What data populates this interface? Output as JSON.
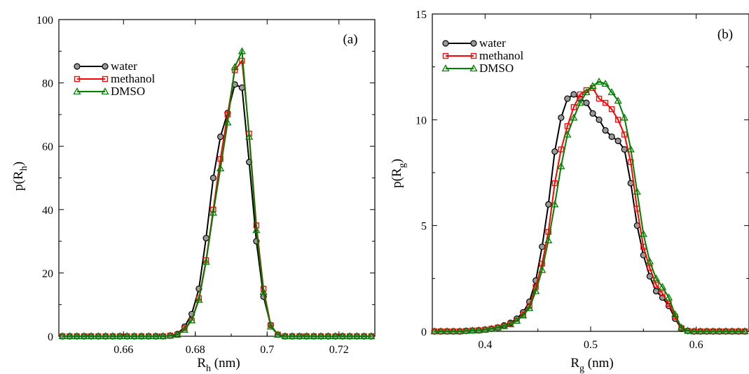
{
  "colors": {
    "water": "#000000",
    "methanol": "#ff0000",
    "dmso": "#008000",
    "water_marker_fill": "#9a9a9a"
  },
  "chart_data": [
    {
      "type": "line",
      "panel_label": "(a)",
      "xlabel_main": "R",
      "xlabel_sub": "h",
      "xlabel_unit": " (nm)",
      "ylabel_main": "p(R",
      "ylabel_sub": "h",
      "ylabel_close": ")",
      "xlim": [
        0.642,
        0.73
      ],
      "ylim": [
        0,
        100
      ],
      "xticks": [
        0.66,
        0.68,
        0.7,
        0.72
      ],
      "xtick_labels": [
        "0.66",
        "0.68",
        "0.7",
        "0.72"
      ],
      "yticks": [
        0,
        20,
        40,
        60,
        80,
        100
      ],
      "ytick_labels": [
        "0",
        "20",
        "40",
        "60",
        "80",
        "100"
      ],
      "legend_position": "top-left",
      "series": [
        {
          "name": "water",
          "marker": "circle",
          "x": [
            0.643,
            0.645,
            0.647,
            0.649,
            0.651,
            0.653,
            0.655,
            0.657,
            0.659,
            0.661,
            0.663,
            0.665,
            0.667,
            0.669,
            0.671,
            0.673,
            0.675,
            0.677,
            0.679,
            0.681,
            0.683,
            0.685,
            0.687,
            0.689,
            0.691,
            0.693,
            0.695,
            0.697,
            0.699,
            0.701,
            0.703,
            0.705,
            0.707,
            0.709,
            0.711,
            0.713,
            0.715,
            0.717,
            0.719,
            0.721,
            0.723,
            0.725,
            0.727,
            0.729
          ],
          "y": [
            0,
            0,
            0,
            0,
            0,
            0,
            0,
            0,
            0,
            0,
            0,
            0,
            0,
            0,
            0,
            0.2,
            0.7,
            3,
            7,
            15,
            31,
            50,
            63,
            70.5,
            79.5,
            78.5,
            55,
            30,
            12.5,
            3.5,
            0.5,
            0,
            0,
            0,
            0,
            0,
            0,
            0,
            0,
            0,
            0,
            0,
            0,
            0
          ]
        },
        {
          "name": "methanol",
          "marker": "square",
          "x": [
            0.643,
            0.645,
            0.647,
            0.649,
            0.651,
            0.653,
            0.655,
            0.657,
            0.659,
            0.661,
            0.663,
            0.665,
            0.667,
            0.669,
            0.671,
            0.673,
            0.675,
            0.677,
            0.679,
            0.681,
            0.683,
            0.685,
            0.687,
            0.689,
            0.691,
            0.693,
            0.695,
            0.697,
            0.699,
            0.701,
            0.703,
            0.705,
            0.707,
            0.709,
            0.711,
            0.713,
            0.715,
            0.717,
            0.719,
            0.721,
            0.723,
            0.725,
            0.727,
            0.729
          ],
          "y": [
            0,
            0,
            0,
            0,
            0,
            0,
            0,
            0,
            0,
            0,
            0,
            0,
            0,
            0,
            0,
            0.2,
            0.5,
            2.5,
            5,
            12,
            24,
            40,
            56,
            70,
            84,
            87,
            64,
            35,
            15,
            3.5,
            0.5,
            0,
            0,
            0,
            0,
            0,
            0,
            0,
            0,
            0,
            0,
            0,
            0,
            0
          ]
        },
        {
          "name": "DMSO",
          "marker": "triangle",
          "x": [
            0.643,
            0.645,
            0.647,
            0.649,
            0.651,
            0.653,
            0.655,
            0.657,
            0.659,
            0.661,
            0.663,
            0.665,
            0.667,
            0.669,
            0.671,
            0.673,
            0.675,
            0.677,
            0.679,
            0.681,
            0.683,
            0.685,
            0.687,
            0.689,
            0.691,
            0.693,
            0.695,
            0.697,
            0.699,
            0.701,
            0.703,
            0.705,
            0.707,
            0.709,
            0.711,
            0.713,
            0.715,
            0.717,
            0.719,
            0.721,
            0.723,
            0.725,
            0.727,
            0.729
          ],
          "y": [
            0,
            0,
            0,
            0,
            0,
            0,
            0,
            0,
            0,
            0,
            0,
            0,
            0,
            0,
            0,
            0.2,
            0.5,
            2,
            5,
            11.5,
            23.5,
            39,
            53,
            67.5,
            85,
            90,
            63,
            33.5,
            14,
            3,
            0.5,
            0,
            0,
            0,
            0,
            0,
            0,
            0,
            0,
            0,
            0,
            0,
            0,
            0
          ]
        }
      ]
    },
    {
      "type": "line",
      "panel_label": "(b)",
      "xlabel_main": "R",
      "xlabel_sub": "g",
      "xlabel_unit": " (nm)",
      "ylabel_main": "p(R",
      "ylabel_sub": "g",
      "ylabel_close": ")",
      "xlim": [
        0.35,
        0.65
      ],
      "ylim": [
        0,
        15
      ],
      "xticks": [
        0.4,
        0.5,
        0.6
      ],
      "xtick_labels": [
        "0.4",
        "0.5",
        "0.6"
      ],
      "yticks": [
        0,
        5,
        10,
        15
      ],
      "ytick_labels": [
        "0",
        "5",
        "10",
        "15"
      ],
      "legend_position": "top-left",
      "series": [
        {
          "name": "water",
          "marker": "circle",
          "x": [
            0.352,
            0.358,
            0.364,
            0.37,
            0.376,
            0.382,
            0.388,
            0.394,
            0.4,
            0.406,
            0.412,
            0.418,
            0.424,
            0.43,
            0.436,
            0.442,
            0.448,
            0.454,
            0.46,
            0.466,
            0.472,
            0.478,
            0.484,
            0.49,
            0.496,
            0.502,
            0.508,
            0.514,
            0.52,
            0.526,
            0.532,
            0.538,
            0.544,
            0.55,
            0.556,
            0.562,
            0.568,
            0.574,
            0.58,
            0.586,
            0.592,
            0.598,
            0.604,
            0.61,
            0.616,
            0.622,
            0.628,
            0.634,
            0.64,
            0.646
          ],
          "y": [
            0,
            0,
            0,
            0,
            0,
            0.02,
            0.04,
            0.05,
            0.08,
            0.12,
            0.18,
            0.28,
            0.4,
            0.6,
            0.9,
            1.4,
            2.4,
            4.0,
            6.0,
            8.5,
            10.1,
            11.0,
            11.2,
            11.0,
            10.8,
            10.3,
            10.0,
            9.5,
            9.2,
            9.0,
            8.6,
            7.0,
            5.0,
            3.6,
            2.6,
            1.9,
            1.6,
            1.2,
            0.6,
            0.12,
            0.02,
            0,
            0,
            0,
            0,
            0,
            0,
            0,
            0,
            0
          ]
        },
        {
          "name": "methanol",
          "marker": "square",
          "x": [
            0.352,
            0.358,
            0.364,
            0.37,
            0.376,
            0.382,
            0.388,
            0.394,
            0.4,
            0.406,
            0.412,
            0.418,
            0.424,
            0.43,
            0.436,
            0.442,
            0.448,
            0.454,
            0.46,
            0.466,
            0.472,
            0.478,
            0.484,
            0.49,
            0.496,
            0.502,
            0.508,
            0.514,
            0.52,
            0.526,
            0.532,
            0.538,
            0.544,
            0.55,
            0.556,
            0.562,
            0.568,
            0.574,
            0.58,
            0.586,
            0.592,
            0.598,
            0.604,
            0.61,
            0.616,
            0.622,
            0.628,
            0.634,
            0.64,
            0.646
          ],
          "y": [
            0,
            0,
            0,
            0,
            0,
            0.02,
            0.04,
            0.05,
            0.08,
            0.12,
            0.18,
            0.25,
            0.35,
            0.5,
            0.8,
            1.2,
            2.1,
            3.2,
            4.7,
            7.0,
            8.6,
            9.7,
            10.6,
            11.2,
            11.4,
            11.5,
            11.0,
            10.8,
            10.5,
            10.0,
            9.3,
            8.0,
            5.8,
            4.0,
            3.0,
            2.2,
            1.8,
            1.3,
            0.7,
            0.15,
            0.02,
            0,
            0,
            0,
            0,
            0,
            0,
            0,
            0,
            0
          ]
        },
        {
          "name": "DMSO",
          "marker": "triangle",
          "x": [
            0.352,
            0.358,
            0.364,
            0.37,
            0.376,
            0.382,
            0.388,
            0.394,
            0.4,
            0.406,
            0.412,
            0.418,
            0.424,
            0.43,
            0.436,
            0.442,
            0.448,
            0.454,
            0.46,
            0.466,
            0.472,
            0.478,
            0.484,
            0.49,
            0.496,
            0.502,
            0.508,
            0.514,
            0.52,
            0.526,
            0.532,
            0.538,
            0.544,
            0.55,
            0.556,
            0.562,
            0.568,
            0.574,
            0.58,
            0.586,
            0.592,
            0.598,
            0.604,
            0.61,
            0.616,
            0.622,
            0.628,
            0.634,
            0.64,
            0.646
          ],
          "y": [
            0,
            0,
            0,
            0,
            0,
            0.02,
            0.04,
            0.05,
            0.08,
            0.12,
            0.18,
            0.25,
            0.33,
            0.5,
            0.75,
            1.1,
            1.9,
            2.9,
            4.3,
            6.0,
            7.8,
            9.3,
            10.1,
            10.8,
            11.3,
            11.6,
            11.8,
            11.7,
            11.3,
            10.9,
            10.1,
            8.6,
            6.6,
            4.6,
            3.3,
            2.5,
            2.1,
            1.6,
            0.8,
            0.18,
            0.03,
            0,
            0,
            0,
            0,
            0,
            0,
            0,
            0,
            0
          ]
        }
      ]
    }
  ]
}
